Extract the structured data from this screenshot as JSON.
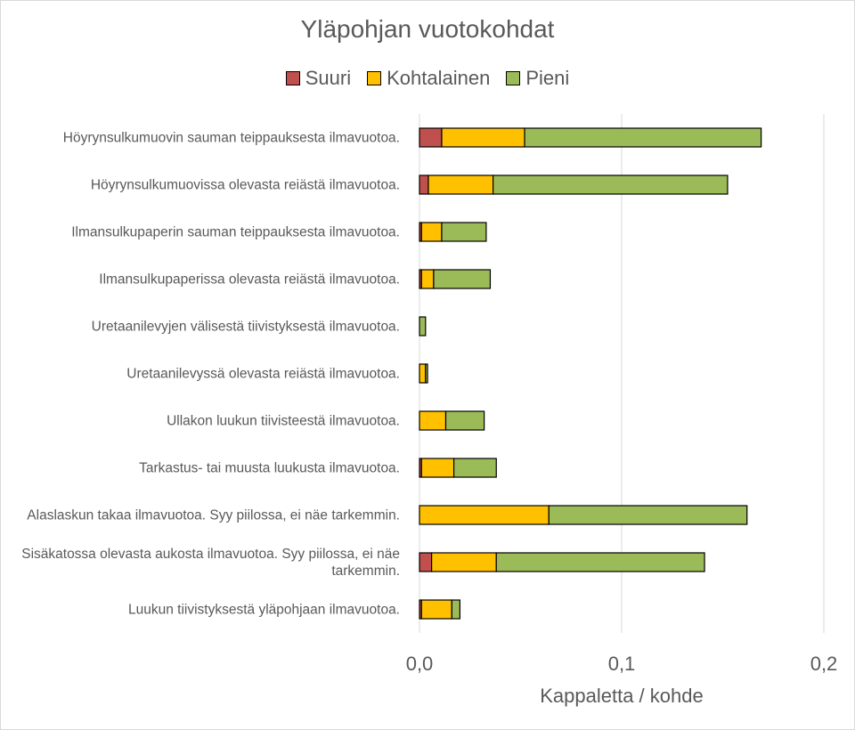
{
  "chart_data": {
    "type": "bar",
    "orientation": "horizontal",
    "stacked": true,
    "title": "Yläpohjan vuotokohdat",
    "x_label": "Kappaletta / kohde",
    "categories": [
      "Höyrynsulkumuovin sauman teippauksesta ilmavuotoa.",
      "Höyrynsulkumuovissa olevasta reiästä ilmavuotoa.",
      "Ilmansulkupaperin sauman teippauksesta ilmavuotoa.",
      "Ilmansulkupaperissa olevasta reiästä ilmavuotoa.",
      "Uretaanilevyjen välisestä tiivistyksestä ilmavuotoa.",
      "Uretaanilevyssä olevasta reiästä ilmavuotoa.",
      "Ullakon luukun tiivisteestä ilmavuotoa.",
      "Tarkastus- tai muusta luukusta ilmavuotoa.",
      "Alaslaskun takaa ilmavuotoa. Syy piilossa, ei näe tarkemmin.",
      "Sisäkatossa olevasta aukosta ilmavuotoa. Syy piilossa, ei näe tarkemmin.",
      "Luukun tiivistyksestä yläpohjaan ilmavuotoa."
    ],
    "series": [
      {
        "name": "Suuri",
        "color": "#c0504d",
        "values": [
          0.011,
          0.0044,
          0.001,
          0.001,
          0,
          0,
          0,
          0.001,
          0,
          0.006,
          0.001
        ]
      },
      {
        "name": "Kohtalainen",
        "color": "#ffc000",
        "values": [
          0.041,
          0.032,
          0.01,
          0.006,
          0,
          0.003,
          0.013,
          0.016,
          0.064,
          0.032,
          0.015
        ]
      },
      {
        "name": "Pieni",
        "color": "#9bbb59",
        "values": [
          0.117,
          0.116,
          0.022,
          0.028,
          0.003,
          0.001,
          0.019,
          0.021,
          0.098,
          0.103,
          0.004
        ]
      }
    ],
    "xlim": [
      0,
      0.2
    ],
    "xticks": [
      {
        "value": 0,
        "label": "0,0"
      },
      {
        "value": 0.1,
        "label": "0,1"
      },
      {
        "value": 0.2,
        "label": "0,2"
      }
    ],
    "grid": true,
    "legend": "top"
  }
}
